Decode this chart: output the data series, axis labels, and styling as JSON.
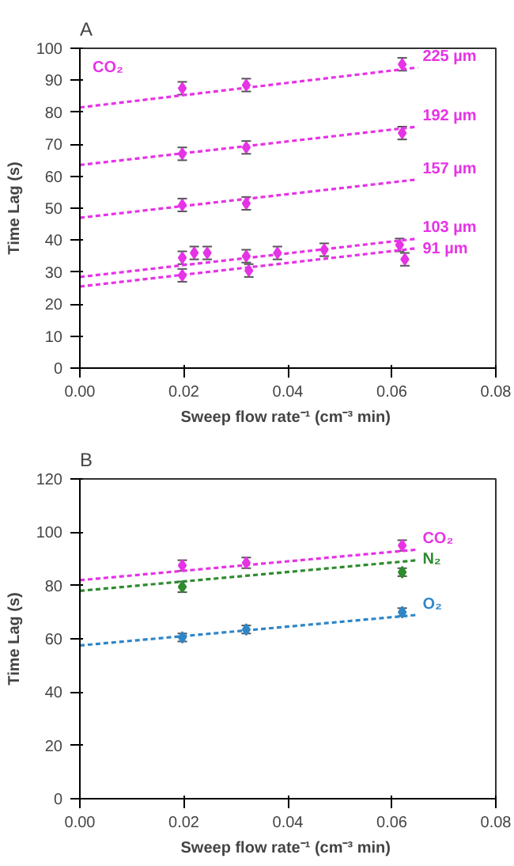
{
  "chart_data": [
    {
      "type": "scatter",
      "title": "A",
      "xlabel": "Sweep flow rate⁻¹  (cm⁻³ min)",
      "ylabel": "Time Lag (s)",
      "xlim": [
        0,
        0.08
      ],
      "xticks": [
        {
          "value": 0,
          "label": "0.00"
        },
        {
          "value": 0.02,
          "label": "0.02"
        },
        {
          "value": 0.04,
          "label": "0.04"
        },
        {
          "value": 0.06,
          "label": "0.06"
        },
        {
          "value": 0.08,
          "label": "0.08"
        }
      ],
      "ylim": [
        0,
        100
      ],
      "yticks": [
        0,
        10,
        20,
        30,
        40,
        50,
        60,
        70,
        80,
        90,
        100
      ],
      "grid": false,
      "marker": "diamond",
      "annotations": [
        "CO₂"
      ],
      "series": [
        {
          "color": "#e633e6",
          "x": [
            0.0197,
            0.032,
            0.062
          ],
          "values": [
            87.5,
            88.5,
            95
          ],
          "errors": [
            2,
            2,
            2
          ]
        },
        {
          "type": "line",
          "name": "225 µm",
          "color": "#e633e6",
          "line_style": "dashed",
          "marker": "none",
          "x": [
            0,
            0.065
          ],
          "values": [
            81.5,
            94
          ]
        },
        {
          "color": "#e633e6",
          "x": [
            0.0197,
            0.032,
            0.062
          ],
          "values": [
            67,
            69,
            73.5
          ],
          "errors": [
            2,
            2,
            2
          ]
        },
        {
          "type": "line",
          "name": "192 µm",
          "color": "#e633e6",
          "line_style": "dashed",
          "marker": "none",
          "x": [
            0,
            0.065
          ],
          "values": [
            63.5,
            75.5
          ]
        },
        {
          "color": "#e633e6",
          "x": [
            0.0197,
            0.032
          ],
          "values": [
            51,
            51.5
          ],
          "errors": [
            2,
            2
          ]
        },
        {
          "type": "line",
          "name": "157 µm",
          "color": "#e633e6",
          "line_style": "dashed",
          "marker": "none",
          "x": [
            0,
            0.065
          ],
          "values": [
            47,
            59
          ]
        },
        {
          "color": "#e633e6",
          "x": [
            0.0197,
            0.022,
            0.0245,
            0.032,
            0.038,
            0.047,
            0.0615
          ],
          "values": [
            34.5,
            36,
            36,
            35,
            36,
            37,
            38.5
          ],
          "errors": [
            2,
            2,
            2,
            2,
            2,
            2,
            2
          ]
        },
        {
          "type": "line",
          "name": "103 µm",
          "color": "#e633e6",
          "line_style": "dashed",
          "marker": "none",
          "x": [
            0,
            0.065
          ],
          "values": [
            28.5,
            40.5
          ]
        },
        {
          "color": "#e633e6",
          "x": [
            0.0197,
            0.0325,
            0.0625
          ],
          "values": [
            29,
            30.5,
            34
          ],
          "errors": [
            2,
            2,
            2
          ]
        },
        {
          "type": "line",
          "name": "91 µm",
          "color": "#e633e6",
          "line_style": "dashed",
          "marker": "none",
          "x": [
            0,
            0.065
          ],
          "values": [
            25.5,
            37.5
          ]
        }
      ]
    },
    {
      "type": "scatter",
      "title": "B",
      "xlabel": "Sweep flow rate⁻¹  (cm⁻³ min)",
      "ylabel": "Time Lag (s)",
      "xlim": [
        0,
        0.08
      ],
      "xticks": [
        {
          "value": 0,
          "label": "0.00"
        },
        {
          "value": 0.02,
          "label": "0.02"
        },
        {
          "value": 0.04,
          "label": "0.04"
        },
        {
          "value": 0.06,
          "label": "0.06"
        },
        {
          "value": 0.08,
          "label": "0.08"
        }
      ],
      "ylim": [
        0,
        120
      ],
      "yticks": [
        0,
        20,
        40,
        60,
        80,
        100,
        120
      ],
      "grid": false,
      "marker": "diamond",
      "series": [
        {
          "color": "#e633e6",
          "x": [
            0.0197,
            0.032,
            0.062
          ],
          "values": [
            87.5,
            88.5,
            95
          ],
          "errors": [
            2,
            2,
            2
          ]
        },
        {
          "type": "line",
          "name": "CO₂",
          "color": "#e633e6",
          "line_style": "dashed",
          "marker": "none",
          "x": [
            0,
            0.065
          ],
          "values": [
            82,
            93.5
          ]
        },
        {
          "color": "#2e8b2e",
          "x": [
            0.0197,
            0.062
          ],
          "values": [
            79.5,
            85
          ],
          "errors": [
            2,
            1.5
          ]
        },
        {
          "type": "line",
          "name": "N₂",
          "color": "#2e8b2e",
          "line_style": "dashed",
          "marker": "none",
          "x": [
            0,
            0.065
          ],
          "values": [
            78,
            89.5
          ]
        },
        {
          "color": "#2e86c8",
          "x": [
            0.0197,
            0.032,
            0.062
          ],
          "values": [
            60.5,
            63.5,
            70
          ],
          "errors": [
            1.5,
            1.5,
            1.5
          ]
        },
        {
          "type": "line",
          "name": "O₂",
          "color": "#2e86c8",
          "line_style": "dashed",
          "marker": "none",
          "x": [
            0,
            0.065
          ],
          "values": [
            57.5,
            69
          ]
        }
      ]
    }
  ]
}
